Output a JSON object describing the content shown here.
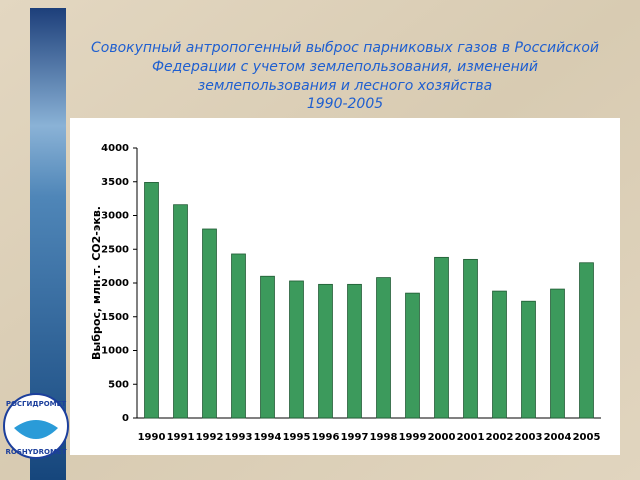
{
  "header": {
    "title": [
      "Совокупный антропогенный выброс парниковых газов в Российской",
      "Федерации с учетом землепользования, изменений",
      "землепользования и лесного хозяйства",
      "1990-2005"
    ]
  },
  "logo": {
    "top": "РОСГИДРОМЕТ",
    "bottom": "ROSHYDROMET"
  },
  "chart_data": {
    "type": "bar",
    "y_label": "Выброс, млн.т. CO2-экв.",
    "categories": [
      "1990",
      "1991",
      "1992",
      "1993",
      "1994",
      "1995",
      "1996",
      "1997",
      "1998",
      "1999",
      "2000",
      "2001",
      "2002",
      "2003",
      "2004",
      "2005"
    ],
    "values": [
      3490,
      3160,
      2800,
      2430,
      2100,
      2030,
      1980,
      1980,
      2080,
      1850,
      2380,
      2350,
      1880,
      1730,
      1910,
      2300
    ],
    "color": "#3c9a5c",
    "ylim": [
      0,
      4000
    ],
    "yticks": [
      0,
      500,
      1000,
      1500,
      2000,
      2500,
      3000,
      3500,
      4000
    ],
    "grid": false
  }
}
